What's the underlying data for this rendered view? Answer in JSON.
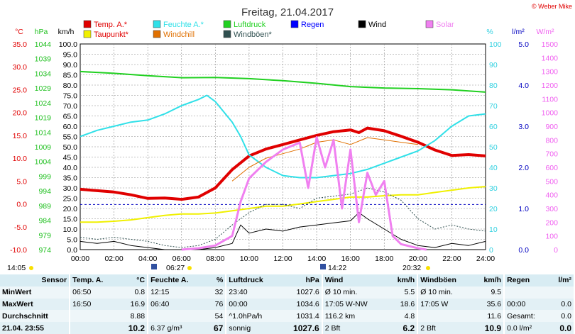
{
  "title": "Freitag, 21.04.2017",
  "copyright": "© Weber Mike",
  "legend": [
    {
      "name": "Temp. A.*",
      "color": "#e00000"
    },
    {
      "name": "Taupunkt*",
      "color": "#f0f000"
    },
    {
      "name": "Feuchte A.*",
      "color": "#30e0e8"
    },
    {
      "name": "Windchill",
      "color": "#e07000"
    },
    {
      "name": "Luftdruck",
      "color": "#20d020"
    },
    {
      "name": "Windböen*",
      "color": "#305050"
    },
    {
      "name": "Regen",
      "color": "#0000ff"
    },
    {
      "name": "Wind",
      "color": "#000000"
    },
    {
      "name": "Solar",
      "color": "#f080f0"
    }
  ],
  "axes": {
    "temp": {
      "unit": "°C",
      "ticks": [
        "35.0",
        "30.0",
        "25.0",
        "20.0",
        "15.0",
        "10.0",
        "5.0",
        "0.0",
        "-5.0",
        "-10.0"
      ],
      "color": "#e00000"
    },
    "pressure": {
      "unit": "hPa",
      "ticks": [
        "1044",
        "1039",
        "1034",
        "1029",
        "1024",
        "1019",
        "1014",
        "1009",
        "1004",
        "999",
        "994",
        "989",
        "984",
        "979",
        "974"
      ],
      "color": "#20c020"
    },
    "wind": {
      "unit": "km/h",
      "ticks": [
        "100.0",
        "95.0",
        "90.0",
        "85.0",
        "80.0",
        "75.0",
        "70.0",
        "65.0",
        "60.0",
        "55.0",
        "50.0",
        "45.0",
        "40.0",
        "35.0",
        "30.0",
        "25.0",
        "20.0",
        "15.0",
        "10.0",
        "5.0",
        "0.0"
      ],
      "color": "#000000"
    },
    "humidity": {
      "unit": "%",
      "ticks": [
        "100",
        "90",
        "80",
        "70",
        "60",
        "50",
        "40",
        "30",
        "20",
        "10",
        "0"
      ],
      "color": "#30d0e0"
    },
    "rain": {
      "unit": "l/m²",
      "ticks": [
        "5.0",
        "4.0",
        "3.0",
        "2.0",
        "1.0",
        "0.0"
      ],
      "color": "#0000c0"
    },
    "solar": {
      "unit": "W/m²",
      "ticks": [
        "1500",
        "1400",
        "1300",
        "1200",
        "1100",
        "1000",
        "900",
        "800",
        "700",
        "600",
        "500",
        "400",
        "300",
        "200",
        "100",
        "0"
      ],
      "color": "#f060f0"
    },
    "time": [
      "00:00",
      "02:00",
      "04:00",
      "06:00",
      "08:00",
      "10:00",
      "12:00",
      "14:00",
      "16:00",
      "18:00",
      "20:00",
      "22:00",
      "24:00"
    ]
  },
  "markers": {
    "sunrise_left": "14:05",
    "sunrise": "06:27",
    "moon": "14:22",
    "sunset": "20:32"
  },
  "chart_data": {
    "type": "line",
    "title": "Freitag, 21.04.2017",
    "x_unit": "h",
    "xlim": [
      0,
      24
    ],
    "series": [
      {
        "name": "Temp. A.*",
        "axis": "temp",
        "x": [
          0,
          1,
          2,
          3,
          4,
          5,
          6,
          7,
          8,
          9,
          10,
          11,
          12,
          13,
          14,
          15,
          16,
          16.5,
          17,
          18,
          19,
          20,
          21,
          22,
          23,
          24
        ],
        "values": [
          3.2,
          2.9,
          2.6,
          2.0,
          1.2,
          1.3,
          1.0,
          1.5,
          3.5,
          7.5,
          10.5,
          12.0,
          13.0,
          14.0,
          15.0,
          15.8,
          16.2,
          15.6,
          16.6,
          16.0,
          14.8,
          13.5,
          11.8,
          10.6,
          10.8,
          10.5
        ]
      },
      {
        "name": "Taupunkt*",
        "axis": "temp",
        "x": [
          0,
          1,
          2,
          3,
          4,
          5,
          6,
          7,
          8,
          9,
          10,
          11,
          12,
          13,
          14,
          15,
          16,
          17,
          18,
          19,
          20,
          21,
          22,
          23,
          24
        ],
        "values": [
          -4.0,
          -4.0,
          -3.8,
          -3.5,
          -3.0,
          -2.5,
          -2.2,
          -2.2,
          -2.0,
          -1.5,
          -1.0,
          -0.5,
          -0.5,
          0.0,
          0.5,
          1.0,
          1.5,
          1.5,
          1.8,
          2.0,
          2.0,
          2.5,
          3.0,
          3.5,
          3.8
        ]
      },
      {
        "name": "Feuchte A.*",
        "axis": "humidity",
        "x": [
          0,
          1,
          2,
          3,
          4,
          5,
          6,
          7,
          7.5,
          8,
          9,
          9.5,
          10,
          11,
          12,
          13,
          14,
          15,
          16,
          17,
          18,
          19,
          20,
          21,
          22,
          23,
          24
        ],
        "values": [
          55,
          58,
          60,
          62,
          63,
          66,
          70,
          73,
          75,
          72,
          62,
          55,
          46,
          40,
          36,
          35,
          35,
          36,
          37,
          39,
          42,
          45,
          48,
          53,
          60,
          65,
          66
        ]
      },
      {
        "name": "Windchill",
        "axis": "temp",
        "x": [
          9,
          10,
          11,
          12,
          13,
          14,
          15,
          16,
          17,
          18,
          19,
          20
        ],
        "values": [
          5.0,
          8.0,
          10.0,
          11.0,
          12.0,
          13.5,
          14.0,
          13.0,
          14.5,
          14.0,
          13.5,
          13.0
        ]
      },
      {
        "name": "Luftdruck",
        "axis": "pressure",
        "x": [
          0,
          2,
          4,
          6,
          8,
          10,
          12,
          14,
          16,
          18,
          20,
          22,
          24
        ],
        "values": [
          1034.6,
          1034.0,
          1033.2,
          1032.5,
          1032.6,
          1032.2,
          1031.5,
          1030.6,
          1029.5,
          1029.0,
          1028.8,
          1028.4,
          1027.6
        ]
      },
      {
        "name": "Windböen*",
        "axis": "wind",
        "x": [
          0,
          1,
          2,
          3,
          4,
          5,
          6,
          7,
          8,
          9,
          10,
          11,
          12,
          13,
          14,
          15,
          16,
          17,
          18,
          19,
          20,
          21,
          22,
          23,
          24
        ],
        "values": [
          6,
          5,
          6,
          5,
          4,
          2,
          1,
          2,
          5,
          12,
          18,
          22,
          22,
          20,
          25,
          26,
          27,
          30,
          28,
          24,
          15,
          10,
          12,
          10,
          9
        ]
      },
      {
        "name": "Wind",
        "axis": "wind",
        "x": [
          0,
          1,
          2,
          3,
          4,
          5,
          6,
          7,
          8,
          9,
          9.5,
          10,
          11,
          12,
          13,
          14,
          15,
          16,
          16.5,
          17,
          18,
          19,
          20,
          21,
          22,
          23,
          24
        ],
        "values": [
          4,
          3,
          4,
          2,
          1,
          0,
          0,
          0,
          1,
          3,
          12,
          8,
          10,
          9,
          11,
          12,
          13,
          14,
          18,
          15,
          10,
          5,
          2,
          1,
          3,
          2,
          4
        ]
      },
      {
        "name": "Solar",
        "axis": "solar",
        "x": [
          6,
          7,
          8,
          9,
          9.5,
          10,
          11,
          12,
          13,
          13.5,
          14,
          14.5,
          15,
          15.5,
          16,
          16.5,
          17,
          17.5,
          18,
          18.5,
          19,
          20,
          20.5
        ],
        "values": [
          0,
          10,
          30,
          100,
          350,
          520,
          640,
          730,
          780,
          450,
          820,
          600,
          800,
          300,
          730,
          200,
          560,
          400,
          500,
          100,
          40,
          10,
          0
        ]
      }
    ]
  },
  "stats": {
    "headers": [
      "Sensor",
      "Temp. A.",
      "°C",
      "Feuchte A.",
      "%",
      "Luftdruck",
      "hPa",
      "Wind",
      "km/h",
      "Windböen",
      "km/h",
      "Regen",
      "l/m²"
    ],
    "rows": [
      {
        "label": "MinWert",
        "cells": [
          "06:50",
          "0.8",
          "12:15",
          "32",
          "23:40",
          "1027.6",
          "Ø 10 min.",
          "5.5",
          "Ø 10 min.",
          "9.5",
          "",
          ""
        ]
      },
      {
        "label": "MaxWert",
        "cells": [
          "16:50",
          "16.9",
          "06:40",
          "76",
          "00:00",
          "1034.6",
          "17:05    W-NW",
          "18.6",
          "17:05    W",
          "35.6",
          "00:00",
          "0.0"
        ]
      },
      {
        "label": "Durchschnitt",
        "cells": [
          "",
          "8.88",
          "",
          "54",
          "^1.0hPa/h",
          "1031.4",
          "116.2 km",
          "4.8",
          "",
          "11.6",
          "Gesamt:",
          "0.0"
        ]
      },
      {
        "label": "21.04.  23:55",
        "cells": [
          "",
          "10.2",
          "6.37 g/m³",
          "67",
          "sonnig",
          "1027.6",
          "2 Bft",
          "6.2",
          "2 Bft",
          "10.9",
          "0.0 l/m²",
          "0.0"
        ]
      }
    ]
  }
}
